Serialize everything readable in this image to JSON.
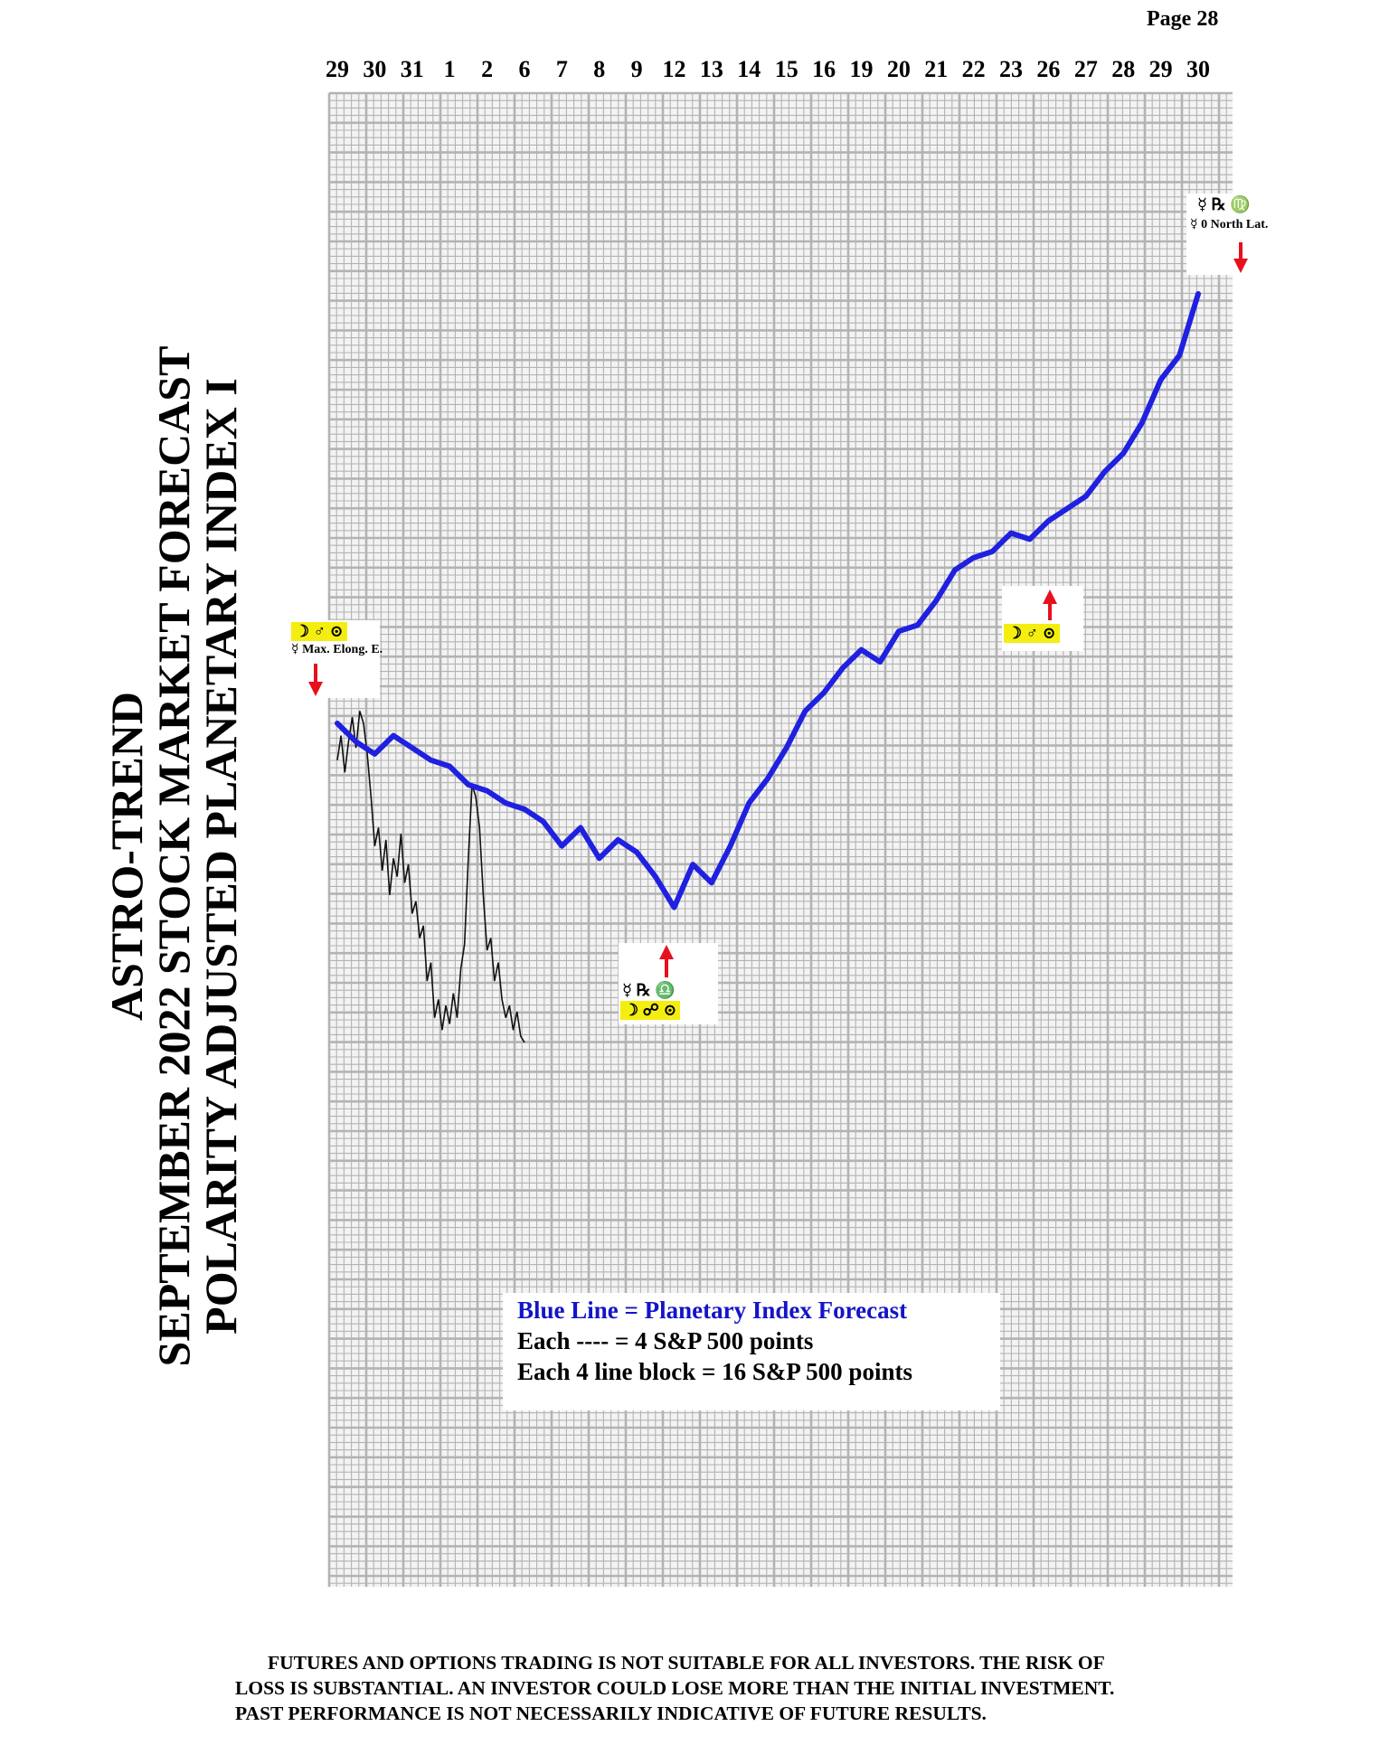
{
  "page": {
    "number_label": "Page  28"
  },
  "title": {
    "line1": "ASTRO-TREND",
    "line2": "SEPTEMBER 2022  STOCK MARKET FORECAST",
    "line3": "POLARITY ADJUSTED PLANETARY INDEX I"
  },
  "colors": {
    "forecast_line": "#2020e0",
    "grid": "#b3b3b3",
    "price": "#111111",
    "marker": "#e8101c",
    "highlight": "#f4ee10"
  },
  "legend": {
    "line1": "Blue Line = Planetary Index Forecast",
    "line2": "Each ---- =    4 S&P 500 points",
    "line3": "Each 4 line block =  16  S&P 500 points"
  },
  "annotations": [
    {
      "id": "aug29",
      "row1": "☽ ♂ ⊙",
      "row2": "☿ Max. Elong. E.",
      "arrow": "down"
    },
    {
      "id": "sep9",
      "row1": "☿ ℞ ♎",
      "row2": "☽ ☍ ⊙",
      "arrow": "up"
    },
    {
      "id": "sep26",
      "row1": "☽ ♂ ⊙",
      "arrow": "up"
    },
    {
      "id": "sep30",
      "row1": "☿ ℞ ♍",
      "row2": "☿ 0 North Lat.",
      "arrow": "down"
    }
  ],
  "disclaimer": {
    "line1": "FUTURES AND OPTIONS TRADING IS NOT SUITABLE FOR ALL INVESTORS.  THE RISK OF",
    "line2": "LOSS IS SUBSTANTIAL.  AN INVESTOR COULD LOSE MORE THAN THE INITIAL INVESTMENT.",
    "line3": "PAST PERFORMANCE IS NOT NECESSARILY INDICATIVE OF FUTURE RESULTS."
  },
  "chart_data": {
    "type": "line",
    "title": "ASTRO-TREND SEPTEMBER 2022 STOCK MARKET FORECAST POLARITY ADJUSTED PLANETARY INDEX I",
    "x_tick_labels": [
      "29",
      "30",
      "31",
      "1",
      "2",
      "6",
      "7",
      "8",
      "9",
      "12",
      "13",
      "14",
      "15",
      "16",
      "19",
      "20",
      "21",
      "22",
      "23",
      "26",
      "27",
      "28",
      "29",
      "30"
    ],
    "y_unit": "S&P 500 points (relative)",
    "y_range": [
      -264,
      160
    ],
    "grid": true,
    "series": [
      {
        "name": "Blue Line = Planetary Index Forecast",
        "x": [
          0,
          0.5,
          1,
          1.5,
          2,
          2.5,
          3,
          3.5,
          4,
          4.5,
          5,
          5.5,
          6,
          6.5,
          7,
          7.5,
          8,
          8.5,
          9,
          9.5,
          10,
          10.5,
          11,
          11.5,
          12,
          12.5,
          13,
          13.5,
          14,
          14.5,
          15,
          15.5,
          16,
          16.5,
          17,
          17.5,
          18,
          18.5,
          19,
          19.5,
          20,
          20.5,
          21,
          21.5,
          22,
          22.5,
          23
        ],
        "values": [
          0,
          -6,
          -10,
          -4,
          -8,
          -12,
          -14,
          -20,
          -22,
          -26,
          -28,
          -32,
          -40,
          -34,
          -44,
          -38,
          -42,
          -50,
          -60,
          -46,
          -52,
          -40,
          -26,
          -18,
          -8,
          4,
          10,
          18,
          24,
          20,
          30,
          32,
          40,
          50,
          54,
          56,
          62,
          60,
          66,
          70,
          74,
          82,
          88,
          98,
          112,
          120,
          140
        ]
      },
      {
        "name": "S&P 500",
        "x": [
          0,
          0.1,
          0.2,
          0.3,
          0.4,
          0.5,
          0.6,
          0.7,
          0.8,
          0.9,
          1,
          1.1,
          1.2,
          1.3,
          1.4,
          1.5,
          1.6,
          1.7,
          1.8,
          1.9,
          2,
          2.1,
          2.2,
          2.3,
          2.4,
          2.5,
          2.6,
          2.7,
          2.8,
          2.9,
          3,
          3.1,
          3.2,
          3.3,
          3.4,
          3.5,
          3.6,
          3.7,
          3.8,
          3.9,
          4,
          4.1,
          4.2,
          4.3,
          4.4,
          4.5,
          4.6,
          4.7,
          4.8,
          4.9,
          5
        ],
        "values": [
          -12,
          -4,
          -16,
          -6,
          2,
          -8,
          4,
          0,
          -10,
          -24,
          -40,
          -34,
          -48,
          -38,
          -56,
          -44,
          -50,
          -36,
          -52,
          -46,
          -62,
          -58,
          -70,
          -66,
          -84,
          -78,
          -96,
          -90,
          -100,
          -92,
          -98,
          -88,
          -96,
          -80,
          -72,
          -44,
          -20,
          -24,
          -34,
          -56,
          -74,
          -70,
          -84,
          -78,
          -90,
          -96,
          -92,
          -100,
          -94,
          -102,
          -104
        ]
      }
    ]
  }
}
